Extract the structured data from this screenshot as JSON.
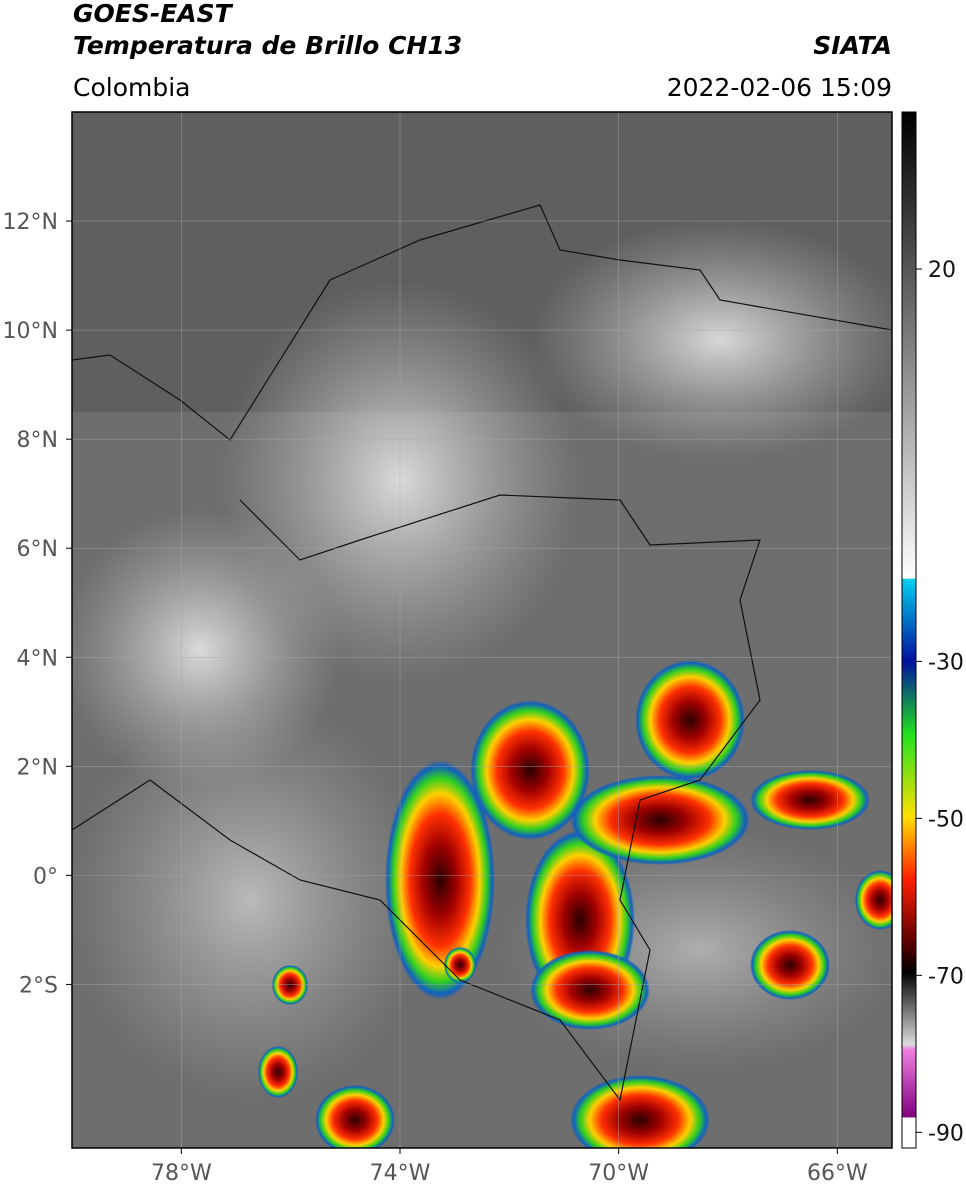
{
  "header": {
    "title": "GOES-EAST",
    "subtitle": "Temperatura de Brillo CH13",
    "region": "Colombia",
    "source": "SIATA",
    "datetime": "2022-02-06 15:09"
  },
  "chart_data": {
    "type": "map",
    "xlim": [
      -80,
      -65
    ],
    "ylim": [
      -5,
      14
    ],
    "xticks": [
      {
        "value": -78,
        "label": "78°W"
      },
      {
        "value": -74,
        "label": "74°W"
      },
      {
        "value": -70,
        "label": "70°W"
      },
      {
        "value": -66,
        "label": "66°W"
      }
    ],
    "yticks": [
      {
        "value": 12,
        "label": "12°N"
      },
      {
        "value": 10,
        "label": "10°N"
      },
      {
        "value": 8,
        "label": "8°N"
      },
      {
        "value": 6,
        "label": "6°N"
      },
      {
        "value": 4,
        "label": "4°N"
      },
      {
        "value": 2,
        "label": "2°N"
      },
      {
        "value": 0,
        "label": "0°"
      },
      {
        "value": -2,
        "label": "2°S"
      }
    ],
    "grid": true,
    "colorbar": {
      "lim": [
        -92,
        40
      ],
      "ticks": [
        20,
        -30,
        -50,
        -70,
        -90
      ]
    }
  }
}
